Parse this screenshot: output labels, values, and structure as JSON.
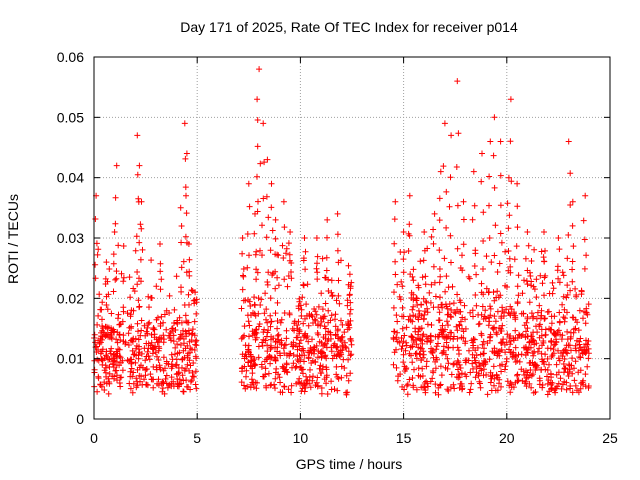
{
  "chart_data": {
    "type": "scatter",
    "title": "Day 171 of 2025, Rate Of TEC Index for receiver p014",
    "xlabel": "GPS time / hours",
    "ylabel": "ROTI / TECUs",
    "xlim": [
      0,
      25
    ],
    "ylim": [
      0,
      0.06
    ],
    "xticks": [
      0,
      5,
      10,
      15,
      20,
      25
    ],
    "xtick_labels": [
      "0",
      "5",
      "10",
      "15",
      "20",
      "25"
    ],
    "yticks": [
      0,
      0.01,
      0.02,
      0.03,
      0.04,
      0.05,
      0.06
    ],
    "ytick_labels": [
      "0",
      "0.01",
      "0.02",
      "0.03",
      "0.04",
      "0.05",
      "0.06"
    ],
    "grid": true,
    "marker": "+",
    "color": "#ff0000",
    "series": [
      {
        "name": "ROTI",
        "segments": [
          {
            "start": 0.0,
            "end": 5.0,
            "base": 0.011,
            "spread": 0.006,
            "peaks": [
              [
                0.1,
                0.037
              ],
              [
                0.6,
                0.026
              ],
              [
                1.0,
                0.031
              ],
              [
                1.1,
                0.042
              ],
              [
                2.1,
                0.047
              ],
              [
                2.2,
                0.042
              ],
              [
                2.3,
                0.036
              ],
              [
                3.2,
                0.029
              ],
              [
                4.2,
                0.035
              ],
              [
                4.4,
                0.049
              ],
              [
                4.5,
                0.044
              ],
              [
                4.6,
                0.029
              ],
              [
                4.9,
                0.021
              ]
            ]
          },
          {
            "start": 7.1,
            "end": 12.5,
            "base": 0.012,
            "spread": 0.007,
            "peaks": [
              [
                7.2,
                0.03
              ],
              [
                7.5,
                0.039
              ],
              [
                7.8,
                0.034
              ],
              [
                7.9,
                0.053
              ],
              [
                8.0,
                0.058
              ],
              [
                8.2,
                0.049
              ],
              [
                8.4,
                0.043
              ],
              [
                8.6,
                0.039
              ],
              [
                8.8,
                0.033
              ],
              [
                9.2,
                0.036
              ],
              [
                9.5,
                0.031
              ],
              [
                10.2,
                0.03
              ],
              [
                10.8,
                0.03
              ],
              [
                11.3,
                0.033
              ],
              [
                11.8,
                0.034
              ],
              [
                12.4,
                0.024
              ]
            ]
          },
          {
            "start": 14.5,
            "end": 24.0,
            "base": 0.012,
            "spread": 0.007,
            "peaks": [
              [
                14.6,
                0.036
              ],
              [
                15.0,
                0.031
              ],
              [
                15.3,
                0.037
              ],
              [
                16.0,
                0.031
              ],
              [
                16.5,
                0.034
              ],
              [
                16.8,
                0.041
              ],
              [
                17.0,
                0.049
              ],
              [
                17.3,
                0.047
              ],
              [
                17.6,
                0.056
              ],
              [
                17.9,
                0.036
              ],
              [
                18.4,
                0.041
              ],
              [
                18.8,
                0.044
              ],
              [
                19.2,
                0.046
              ],
              [
                19.4,
                0.05
              ],
              [
                19.7,
                0.046
              ],
              [
                20.1,
                0.04
              ],
              [
                20.2,
                0.053
              ],
              [
                20.5,
                0.039
              ],
              [
                21.0,
                0.031
              ],
              [
                21.8,
                0.031
              ],
              [
                22.5,
                0.03
              ],
              [
                23.0,
                0.046
              ],
              [
                23.2,
                0.036
              ],
              [
                23.8,
                0.037
              ]
            ]
          }
        ]
      }
    ]
  }
}
